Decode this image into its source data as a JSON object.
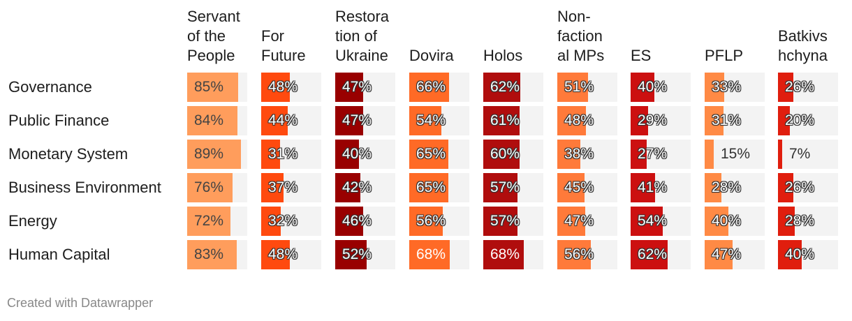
{
  "chart_data": {
    "type": "table",
    "columns": [
      "Servant of the People",
      "For Future",
      "Restoration of Ukraine",
      "Dovira",
      "Holos",
      "Non-factional MPs",
      "ES",
      "PFLP",
      "Batkivshchyna"
    ],
    "column_header_lines": [
      [
        "Servant",
        "of the",
        "People"
      ],
      [
        "For",
        "Future"
      ],
      [
        "Restora",
        "tion of",
        "Ukraine"
      ],
      [
        "Dovira"
      ],
      [
        "Holos"
      ],
      [
        "Non-",
        "faction",
        "al MPs"
      ],
      [
        "ES"
      ],
      [
        "PFLP"
      ],
      [
        "Batkivs",
        "hchyna"
      ]
    ],
    "rows": [
      "Governance",
      "Public Finance",
      "Monetary System",
      "Business Environment",
      "Energy",
      "Human Capital"
    ],
    "values": [
      [
        85,
        48,
        47,
        66,
        62,
        51,
        40,
        33,
        26
      ],
      [
        84,
        44,
        47,
        54,
        61,
        48,
        29,
        31,
        20
      ],
      [
        89,
        31,
        40,
        65,
        60,
        38,
        27,
        15,
        7
      ],
      [
        76,
        37,
        42,
        65,
        57,
        45,
        41,
        28,
        26
      ],
      [
        72,
        32,
        46,
        56,
        57,
        47,
        54,
        40,
        28
      ],
      [
        83,
        48,
        52,
        68,
        68,
        56,
        62,
        47,
        40
      ]
    ],
    "unit": "%",
    "colors": {
      "Servant of the People": "#ff9d5c",
      "For Future": "#ff4a0f",
      "Restoration of Ukraine": "#990000",
      "Dovira": "#ff6a26",
      "Holos": "#b00d0d",
      "Non-factional MPs": "#ff7a3a",
      "ES": "#cc1010",
      "PFLP": "#ff8a45",
      "Batkivshchyna": "#e01e0e"
    },
    "cell_background": "#f3f3f3"
  },
  "footer": "Created with Datawrapper"
}
